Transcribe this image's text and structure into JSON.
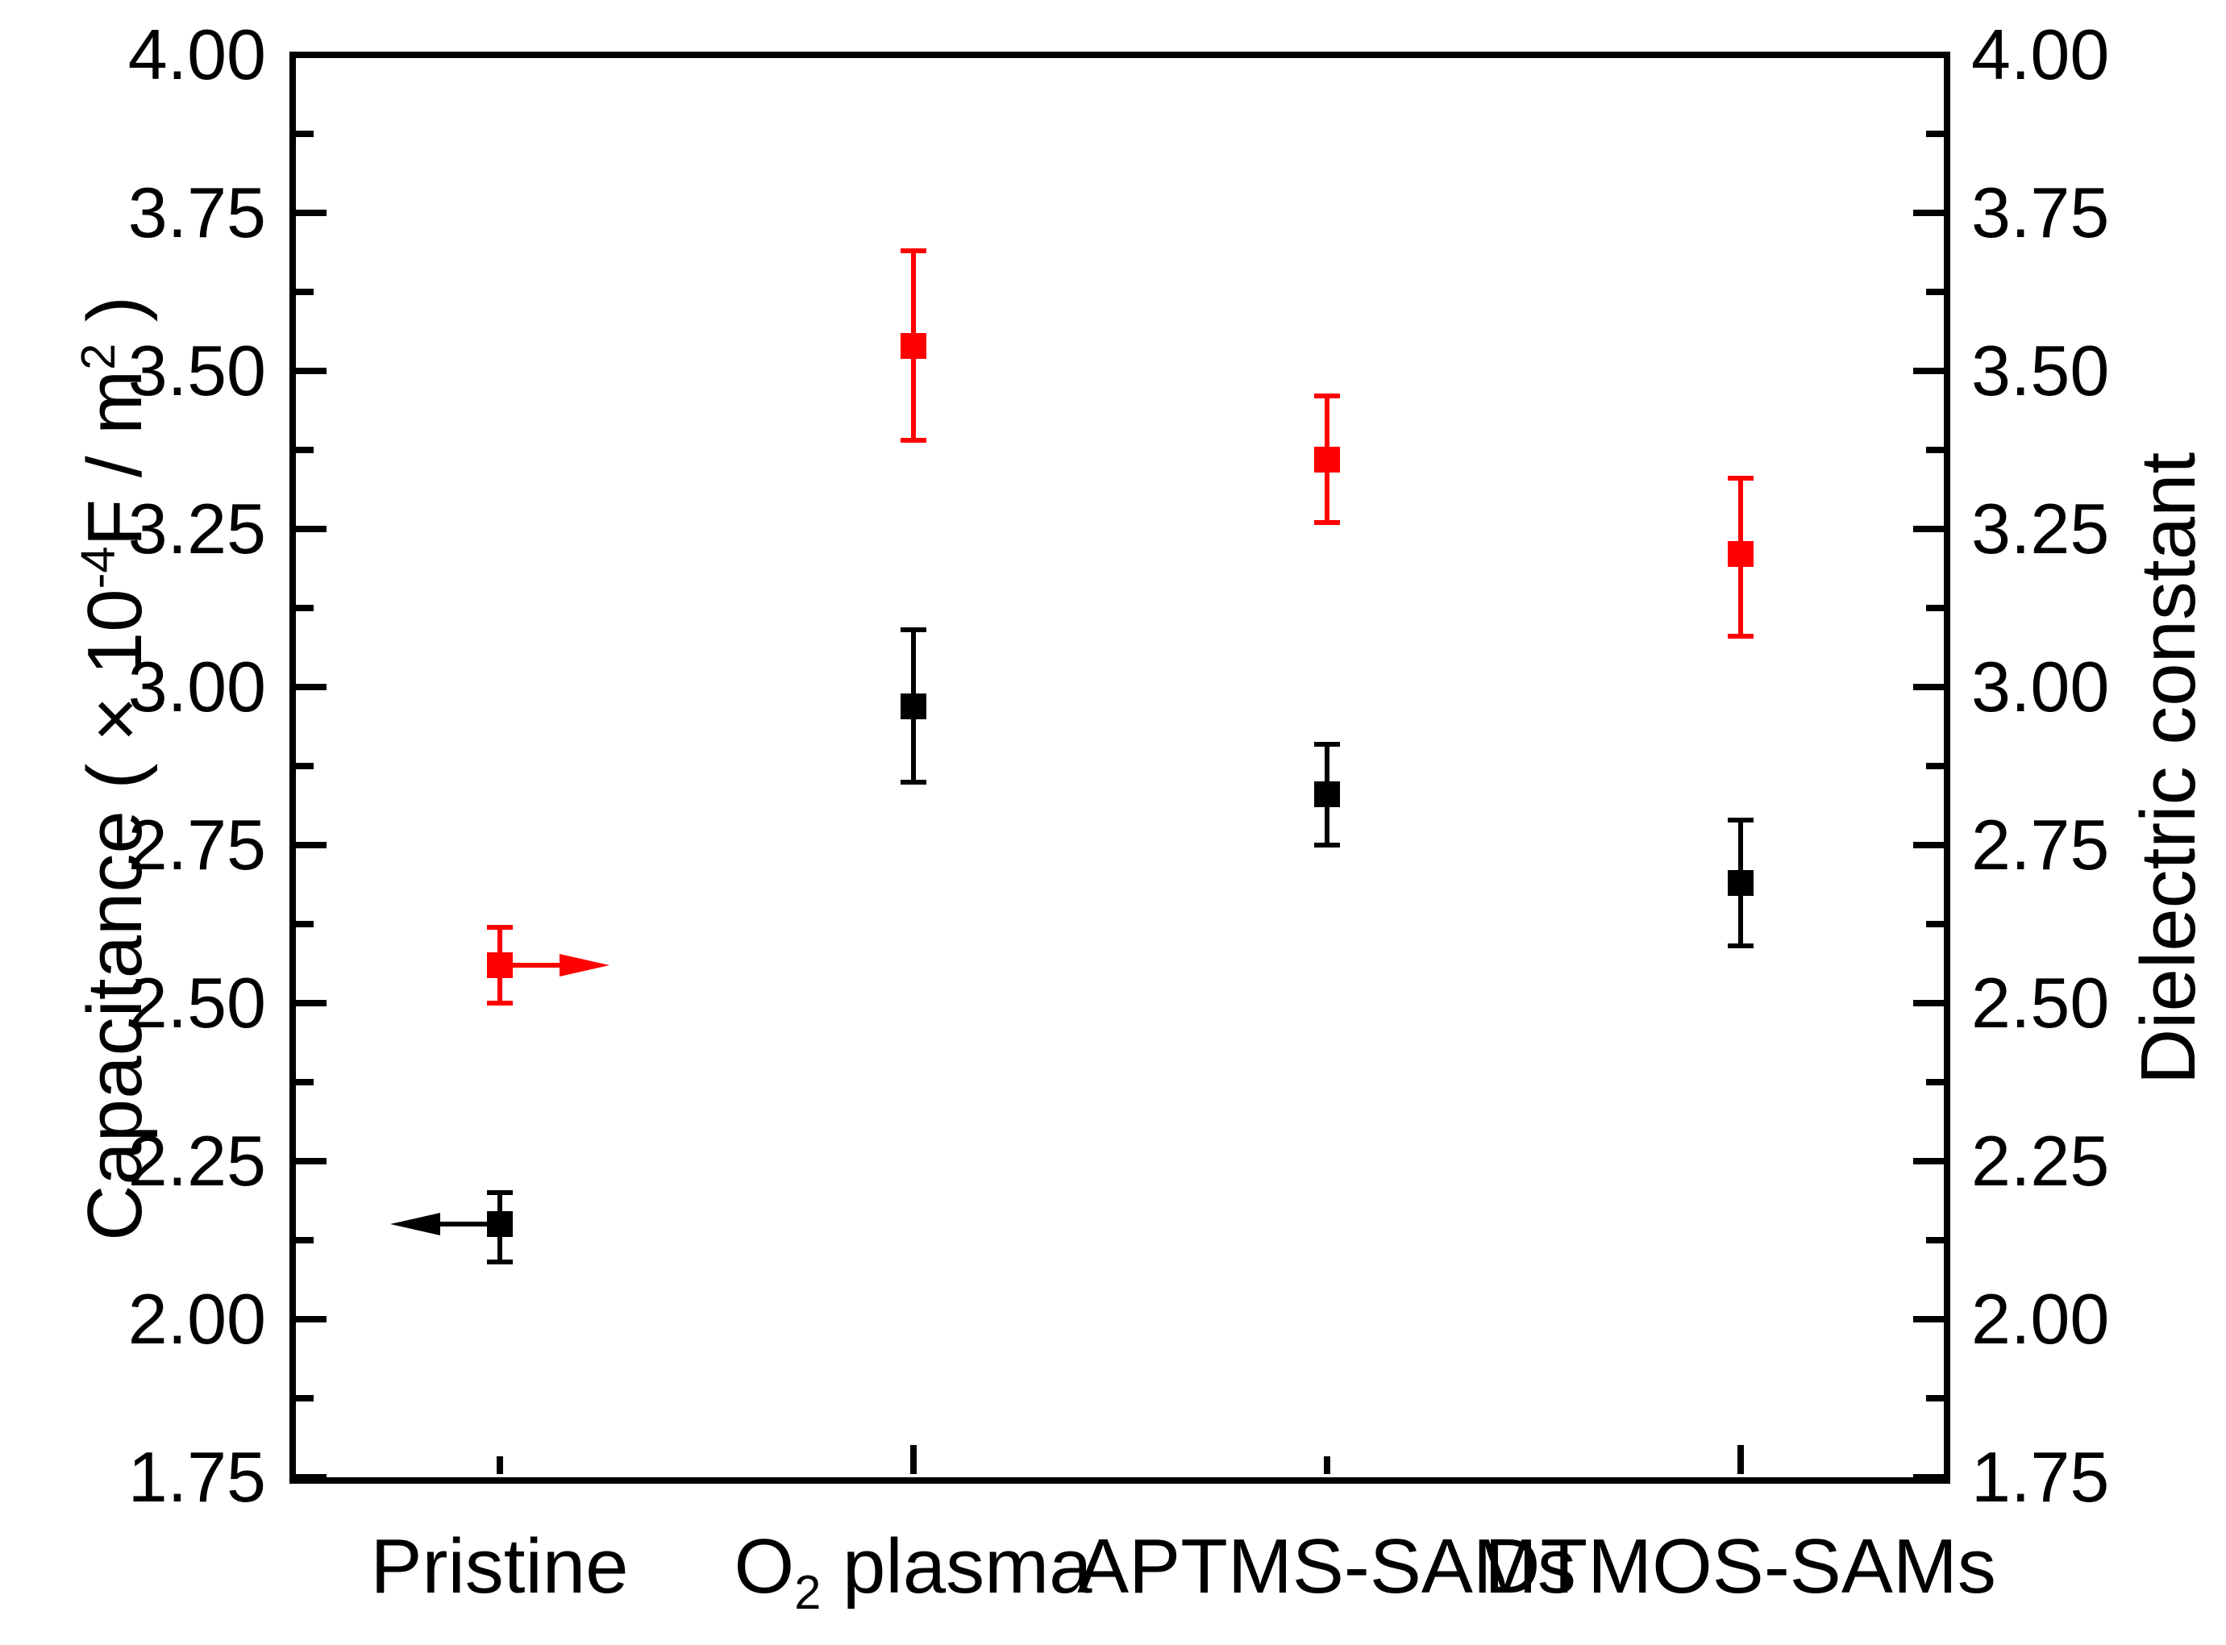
{
  "axes": {
    "left_title_parts": {
      "pre": "Capacitance ( ",
      "times": "× 10",
      "sup1": "-4",
      "mid": "F / m",
      "sup2": "2",
      "post": " )"
    },
    "right_title": "Dielectric constant"
  },
  "chart_data": {
    "type": "scatter",
    "title": "",
    "xlabel": "",
    "ylabel_left": "Capacitance ( × 10^-4 F / m^2 )",
    "ylabel_right": "Dielectric constant",
    "ylim": [
      1.75,
      4.0
    ],
    "yticks_major": [
      "4.00",
      "3.75",
      "3.50",
      "3.25",
      "3.00",
      "2.75",
      "2.50",
      "2.25",
      "2.00",
      "1.75"
    ],
    "minor_tick_step": 0.125,
    "grid": "off",
    "legend_position": "none",
    "categories": [
      {
        "text": "Pristine"
      },
      {
        "text": "O",
        "sub": "2",
        "rest": " plasma"
      },
      {
        "text": "APTMS-SAMs"
      },
      {
        "text": "DTMOS-SAMs"
      }
    ],
    "series": [
      {
        "name": "Capacitance",
        "axis": "left",
        "color": "#000000",
        "marker": "square",
        "values": [
          2.15,
          2.97,
          2.83,
          2.69
        ],
        "err_plus": [
          0.05,
          0.12,
          0.08,
          0.1
        ],
        "err_minus": [
          0.06,
          0.12,
          0.08,
          0.1
        ]
      },
      {
        "name": "Dielectric constant",
        "axis": "right",
        "color": "#ff0000",
        "marker": "square",
        "values": [
          2.56,
          3.54,
          3.36,
          3.21
        ],
        "err_plus": [
          0.06,
          0.15,
          0.1,
          0.12
        ],
        "err_minus": [
          0.06,
          0.15,
          0.1,
          0.13
        ]
      }
    ],
    "annotations": [
      {
        "type": "arrow",
        "direction": "left",
        "category": 0,
        "series": 0,
        "color": "#000000"
      },
      {
        "type": "arrow",
        "direction": "right",
        "category": 0,
        "series": 1,
        "color": "#ff0000"
      }
    ]
  }
}
